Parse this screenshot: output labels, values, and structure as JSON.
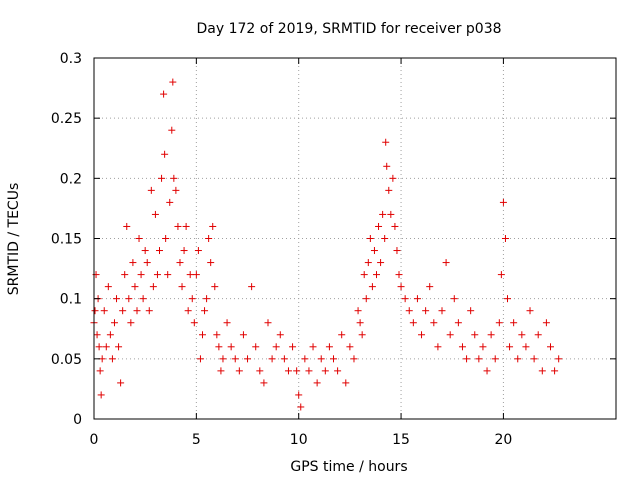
{
  "chart_data": {
    "type": "scatter",
    "title": "Day 172 of 2019, SRMTID for receiver p038",
    "xlabel": "GPS time / hours",
    "ylabel": "SRMTID / TECUs",
    "xlim": [
      0,
      25.5
    ],
    "ylim": [
      0,
      0.3
    ],
    "xticks": [
      0,
      5,
      10,
      15,
      20
    ],
    "xtick_labels": [
      "0",
      "5",
      "10",
      "15",
      "20"
    ],
    "yticks": [
      0,
      0.05,
      0.1,
      0.15,
      0.2,
      0.25,
      0.3
    ],
    "ytick_labels": [
      "0",
      "0.05",
      "0.1",
      "0.15",
      "0.2",
      "0.25",
      "0.3"
    ],
    "grid": true,
    "marker": "+",
    "color": "#e00000",
    "series": [
      {
        "name": "SRMTID",
        "x": [
          0.0,
          0.05,
          0.1,
          0.15,
          0.2,
          0.25,
          0.3,
          0.35,
          0.4,
          0.5,
          0.6,
          0.7,
          0.8,
          0.9,
          1.0,
          1.1,
          1.2,
          1.3,
          1.4,
          1.5,
          1.6,
          1.7,
          1.8,
          1.9,
          2.0,
          2.1,
          2.2,
          2.3,
          2.4,
          2.5,
          2.6,
          2.7,
          2.8,
          2.9,
          3.0,
          3.1,
          3.2,
          3.3,
          3.4,
          3.45,
          3.5,
          3.6,
          3.7,
          3.8,
          3.85,
          3.9,
          4.0,
          4.1,
          4.2,
          4.3,
          4.4,
          4.5,
          4.6,
          4.7,
          4.8,
          4.9,
          5.0,
          5.1,
          5.2,
          5.3,
          5.4,
          5.5,
          5.6,
          5.7,
          5.8,
          5.9,
          6.0,
          6.1,
          6.2,
          6.3,
          6.5,
          6.7,
          6.9,
          7.1,
          7.3,
          7.5,
          7.7,
          7.9,
          8.1,
          8.3,
          8.5,
          8.7,
          8.9,
          9.1,
          9.3,
          9.5,
          9.7,
          9.9,
          10.0,
          10.1,
          10.3,
          10.5,
          10.7,
          10.9,
          11.1,
          11.3,
          11.5,
          11.7,
          11.9,
          12.1,
          12.3,
          12.5,
          12.7,
          12.9,
          13.0,
          13.1,
          13.2,
          13.3,
          13.4,
          13.5,
          13.6,
          13.7,
          13.8,
          13.9,
          14.0,
          14.1,
          14.2,
          14.25,
          14.3,
          14.4,
          14.5,
          14.6,
          14.7,
          14.8,
          14.9,
          15.0,
          15.2,
          15.4,
          15.6,
          15.8,
          16.0,
          16.2,
          16.4,
          16.6,
          16.8,
          17.0,
          17.2,
          17.4,
          17.6,
          17.8,
          18.0,
          18.2,
          18.4,
          18.6,
          18.8,
          19.0,
          19.2,
          19.4,
          19.6,
          19.8,
          19.9,
          20.0,
          20.1,
          20.2,
          20.3,
          20.5,
          20.7,
          20.9,
          21.1,
          21.3,
          21.5,
          21.7,
          21.9,
          22.1,
          22.3,
          22.5,
          22.7
        ],
        "y": [
          0.08,
          0.09,
          0.12,
          0.07,
          0.1,
          0.06,
          0.04,
          0.02,
          0.05,
          0.09,
          0.06,
          0.11,
          0.07,
          0.05,
          0.08,
          0.1,
          0.06,
          0.03,
          0.09,
          0.12,
          0.16,
          0.1,
          0.08,
          0.13,
          0.11,
          0.09,
          0.15,
          0.12,
          0.1,
          0.14,
          0.13,
          0.09,
          0.19,
          0.11,
          0.17,
          0.12,
          0.14,
          0.2,
          0.27,
          0.22,
          0.15,
          0.12,
          0.18,
          0.24,
          0.28,
          0.2,
          0.19,
          0.16,
          0.13,
          0.11,
          0.14,
          0.16,
          0.09,
          0.12,
          0.1,
          0.08,
          0.12,
          0.14,
          0.05,
          0.07,
          0.09,
          0.1,
          0.15,
          0.13,
          0.16,
          0.11,
          0.07,
          0.06,
          0.04,
          0.05,
          0.08,
          0.06,
          0.05,
          0.04,
          0.07,
          0.05,
          0.11,
          0.06,
          0.04,
          0.03,
          0.08,
          0.05,
          0.06,
          0.07,
          0.05,
          0.04,
          0.06,
          0.04,
          0.02,
          0.01,
          0.05,
          0.04,
          0.06,
          0.03,
          0.05,
          0.04,
          0.06,
          0.05,
          0.04,
          0.07,
          0.03,
          0.06,
          0.05,
          0.09,
          0.08,
          0.07,
          0.12,
          0.1,
          0.13,
          0.15,
          0.11,
          0.14,
          0.12,
          0.16,
          0.13,
          0.17,
          0.15,
          0.23,
          0.21,
          0.19,
          0.17,
          0.2,
          0.16,
          0.14,
          0.12,
          0.11,
          0.1,
          0.09,
          0.08,
          0.1,
          0.07,
          0.09,
          0.11,
          0.08,
          0.06,
          0.09,
          0.13,
          0.07,
          0.1,
          0.08,
          0.06,
          0.05,
          0.09,
          0.07,
          0.05,
          0.06,
          0.04,
          0.07,
          0.05,
          0.08,
          0.12,
          0.18,
          0.15,
          0.1,
          0.06,
          0.08,
          0.05,
          0.07,
          0.06,
          0.09,
          0.05,
          0.07,
          0.04,
          0.08,
          0.06,
          0.04,
          0.05
        ]
      }
    ]
  }
}
